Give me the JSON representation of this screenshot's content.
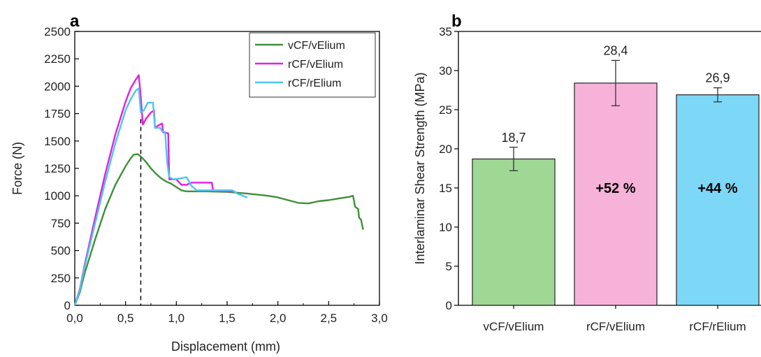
{
  "chart_data": [
    {
      "panel_label": "a",
      "type": "line",
      "xlabel": "Displacement (mm)",
      "ylabel": "Force (N)",
      "xlim": [
        0,
        3.0
      ],
      "ylim": [
        0,
        2500
      ],
      "x_ticks": [
        "0,0",
        "0,5",
        "1,0",
        "1,5",
        "2,0",
        "2,5",
        "3,0"
      ],
      "y_ticks": [
        "0",
        "250",
        "500",
        "750",
        "1000",
        "1250",
        "1500",
        "1750",
        "2000",
        "2250",
        "2500"
      ],
      "legend_position": "top-right",
      "grid": false,
      "annotation": {
        "type": "dashed-vertical",
        "x": 0.65,
        "y_from": 0,
        "y_to": 1700
      },
      "series": [
        {
          "name": "vCF/vElium",
          "color": "#3f8f3a",
          "points": [
            [
              0,
              0
            ],
            [
              0.05,
              120
            ],
            [
              0.1,
              300
            ],
            [
              0.2,
              600
            ],
            [
              0.3,
              880
            ],
            [
              0.4,
              1100
            ],
            [
              0.5,
              1270
            ],
            [
              0.55,
              1340
            ],
            [
              0.58,
              1375
            ],
            [
              0.62,
              1380
            ],
            [
              0.66,
              1350
            ],
            [
              0.7,
              1310
            ],
            [
              0.75,
              1250
            ],
            [
              0.8,
              1200
            ],
            [
              0.85,
              1160
            ],
            [
              0.9,
              1130
            ],
            [
              0.95,
              1110
            ],
            [
              1.0,
              1080
            ],
            [
              1.05,
              1050
            ],
            [
              1.1,
              1040
            ],
            [
              1.3,
              1040
            ],
            [
              1.5,
              1035
            ],
            [
              1.7,
              1020
            ],
            [
              1.9,
              1000
            ],
            [
              2.0,
              985
            ],
            [
              2.1,
              960
            ],
            [
              2.2,
              935
            ],
            [
              2.3,
              930
            ],
            [
              2.4,
              950
            ],
            [
              2.5,
              960
            ],
            [
              2.6,
              975
            ],
            [
              2.7,
              990
            ],
            [
              2.74,
              1000
            ],
            [
              2.76,
              900
            ],
            [
              2.79,
              880
            ],
            [
              2.8,
              800
            ],
            [
              2.82,
              780
            ],
            [
              2.83,
              730
            ],
            [
              2.84,
              690
            ]
          ]
        },
        {
          "name": "rCF/vElium",
          "color": "#e020e0",
          "points": [
            [
              0,
              0
            ],
            [
              0.05,
              150
            ],
            [
              0.1,
              380
            ],
            [
              0.2,
              800
            ],
            [
              0.3,
              1200
            ],
            [
              0.4,
              1560
            ],
            [
              0.5,
              1860
            ],
            [
              0.55,
              1980
            ],
            [
              0.6,
              2060
            ],
            [
              0.63,
              2100
            ],
            [
              0.65,
              1900
            ],
            [
              0.67,
              1650
            ],
            [
              0.7,
              1700
            ],
            [
              0.75,
              1760
            ],
            [
              0.78,
              1780
            ],
            [
              0.79,
              1620
            ],
            [
              0.82,
              1640
            ],
            [
              0.86,
              1660
            ],
            [
              0.87,
              1580
            ],
            [
              0.92,
              1570
            ],
            [
              0.93,
              1150
            ],
            [
              1.0,
              1150
            ],
            [
              1.05,
              1100
            ],
            [
              1.1,
              1100
            ],
            [
              1.15,
              1120
            ],
            [
              1.2,
              1120
            ],
            [
              1.35,
              1120
            ],
            [
              1.36,
              1050
            ],
            [
              1.5,
              1040
            ],
            [
              1.58,
              1040
            ]
          ]
        },
        {
          "name": "rCF/rElium",
          "color": "#4cc4ee",
          "points": [
            [
              0,
              0
            ],
            [
              0.05,
              140
            ],
            [
              0.1,
              360
            ],
            [
              0.2,
              750
            ],
            [
              0.3,
              1130
            ],
            [
              0.4,
              1480
            ],
            [
              0.5,
              1780
            ],
            [
              0.55,
              1880
            ],
            [
              0.6,
              1960
            ],
            [
              0.63,
              1980
            ],
            [
              0.65,
              1760
            ],
            [
              0.68,
              1780
            ],
            [
              0.72,
              1850
            ],
            [
              0.77,
              1850
            ],
            [
              0.79,
              1620
            ],
            [
              0.84,
              1620
            ],
            [
              0.86,
              1590
            ],
            [
              0.89,
              1580
            ],
            [
              0.91,
              1300
            ],
            [
              0.93,
              1170
            ],
            [
              0.97,
              1150
            ],
            [
              1.05,
              1160
            ],
            [
              1.1,
              1170
            ],
            [
              1.15,
              1090
            ],
            [
              1.2,
              1050
            ],
            [
              1.4,
              1050
            ],
            [
              1.55,
              1050
            ],
            [
              1.6,
              1020
            ],
            [
              1.7,
              985
            ]
          ]
        }
      ]
    },
    {
      "panel_label": "b",
      "type": "bar",
      "ylabel": "Interlaminar Shear Strength (MPa)",
      "ylim": [
        0,
        35
      ],
      "y_ticks": [
        "0",
        "5",
        "10",
        "15",
        "20",
        "25",
        "30",
        "35"
      ],
      "grid": false,
      "categories": [
        "vCF/vElium",
        "rCF/vElium",
        "rCF/rElium"
      ],
      "values": [
        18.7,
        28.4,
        26.9
      ],
      "value_labels": [
        "18,7",
        "28,4",
        "26,9"
      ],
      "errors": [
        1.5,
        2.9,
        0.9
      ],
      "colors": [
        "#9fd795",
        "#f7b2da",
        "#7cd8f6"
      ],
      "in_bar_labels": [
        "",
        "+52 %",
        "+44 %"
      ]
    }
  ]
}
